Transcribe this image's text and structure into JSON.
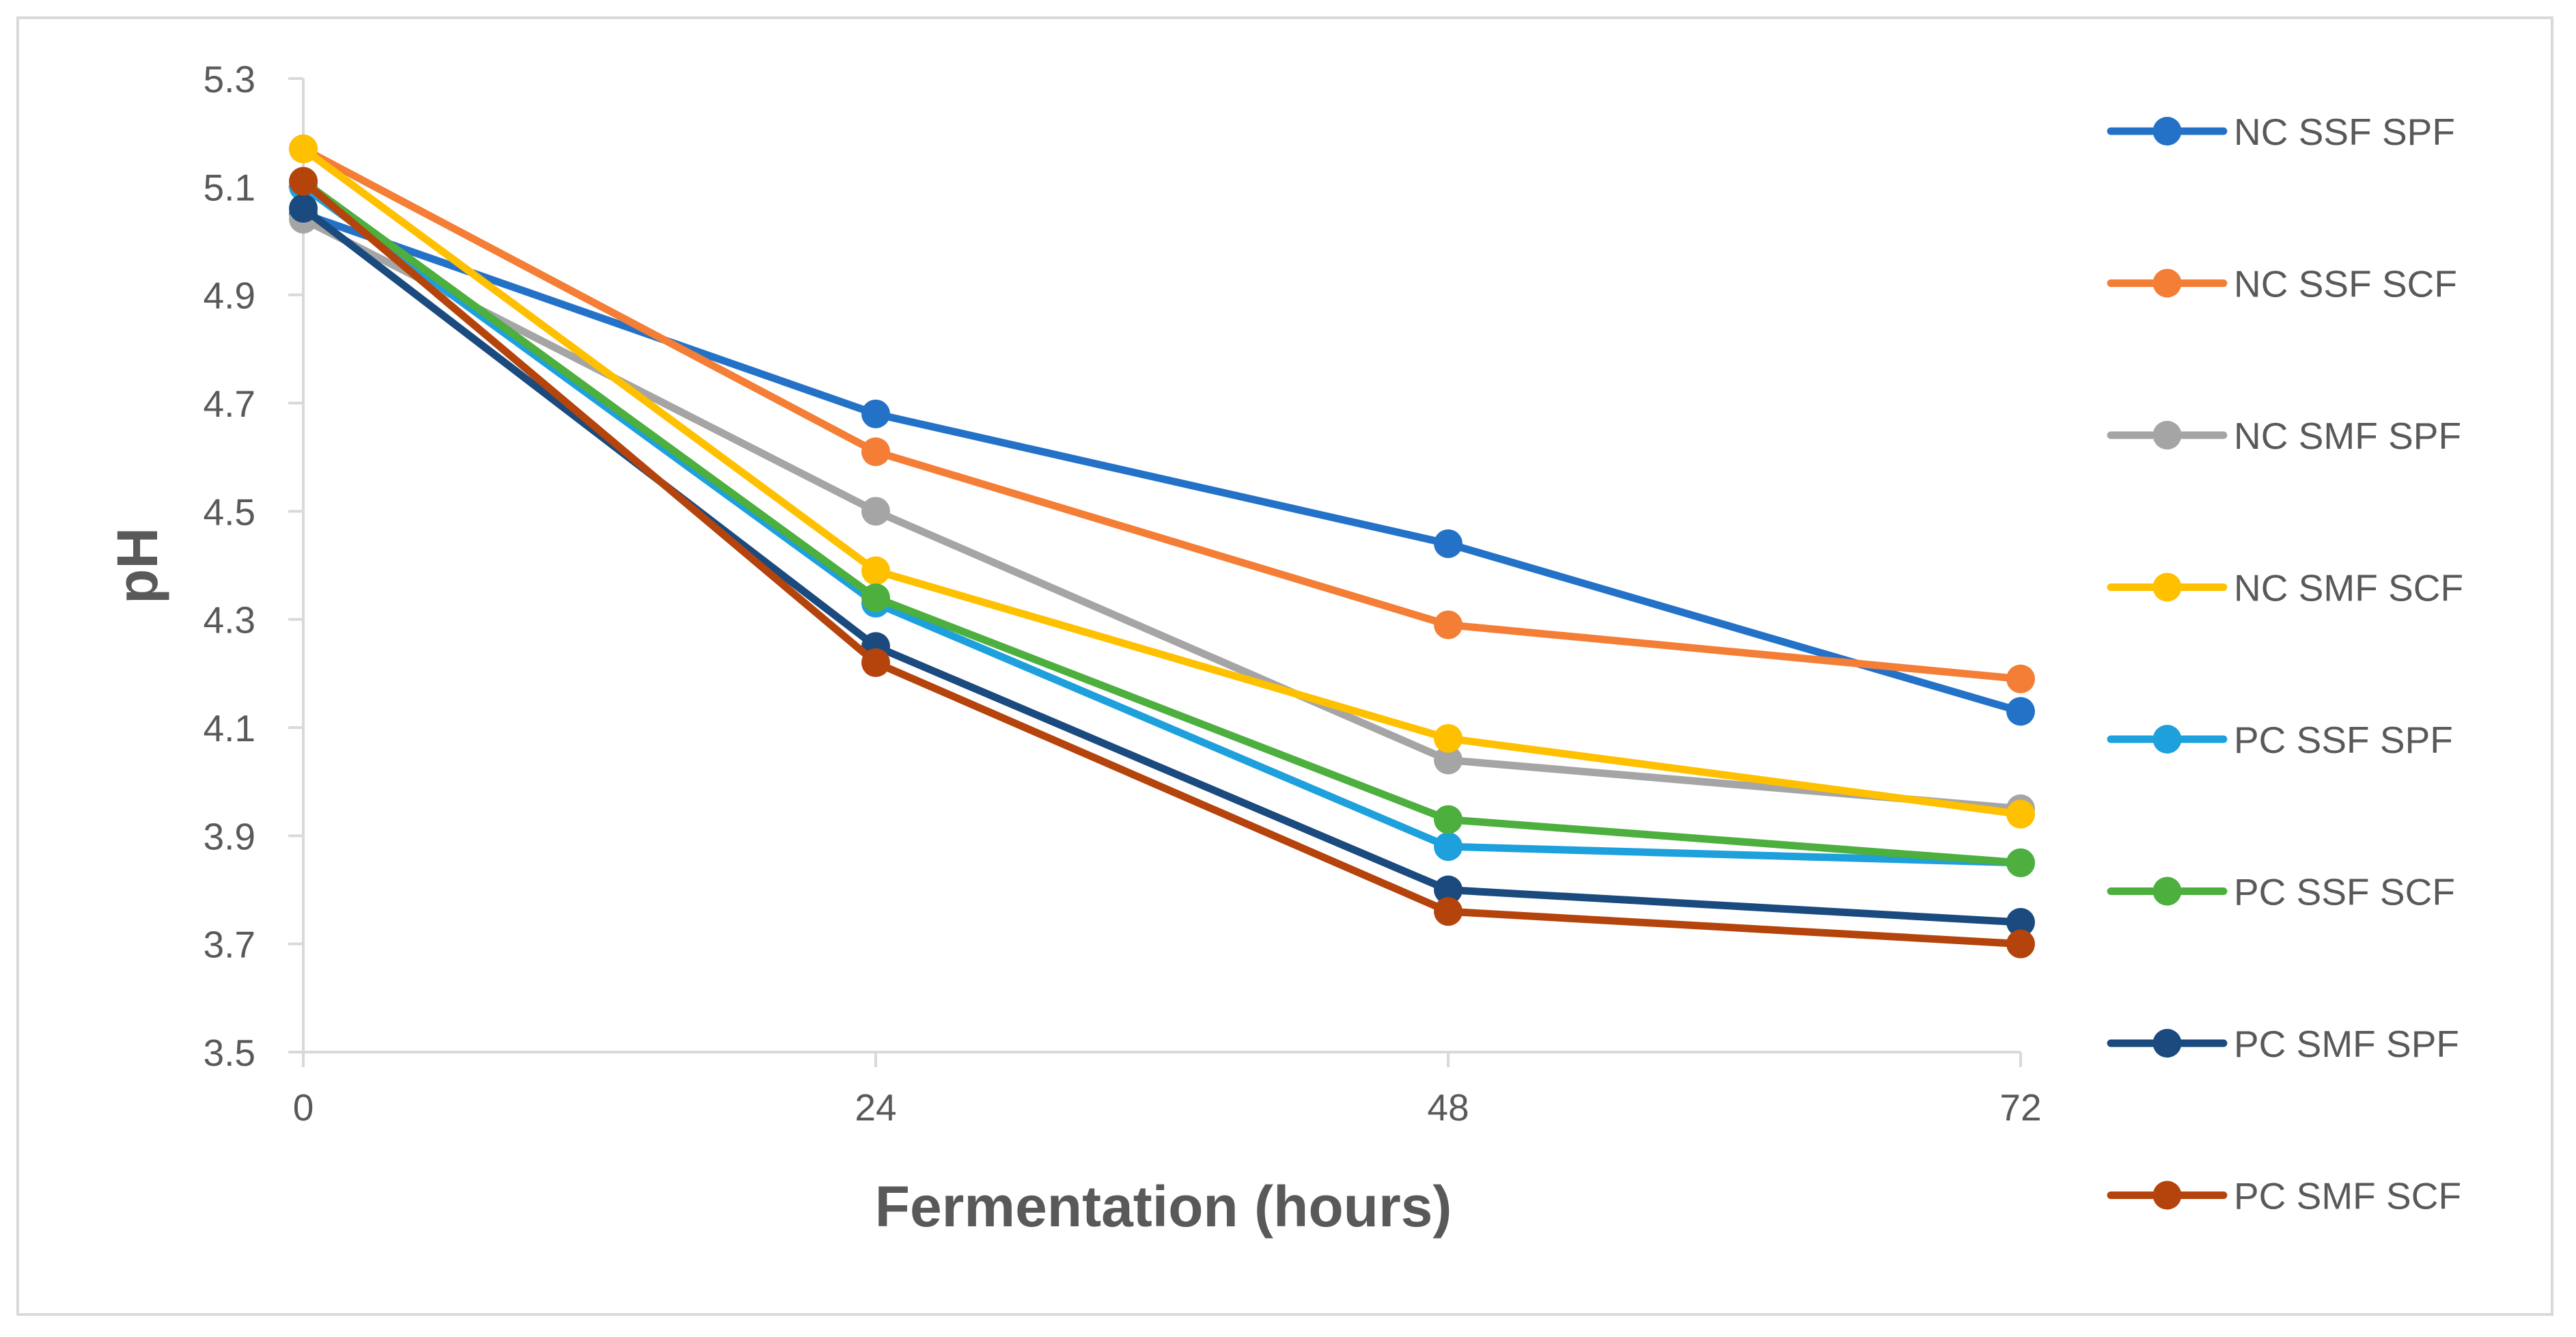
{
  "chart_data": {
    "type": "line",
    "title": "",
    "xlabel": "Fermentation (hours)",
    "ylabel": "pH",
    "x": [
      0,
      24,
      48,
      72
    ],
    "x_tick_labels": [
      "0",
      "24",
      "48",
      "72"
    ],
    "ylim": [
      3.5,
      5.3
    ],
    "y_ticks": [
      3.5,
      3.7,
      3.9,
      4.1,
      4.3,
      4.5,
      4.7,
      4.9,
      5.1,
      5.3
    ],
    "y_tick_labels": [
      "3.5",
      "3.7",
      "3.9",
      "4.1",
      "4.3",
      "4.5",
      "4.7",
      "4.9",
      "5.1",
      "5.3"
    ],
    "grid": false,
    "legend_position": "right",
    "series": [
      {
        "name": "NC SSF SPF",
        "color": "#2472c8",
        "values": [
          5.05,
          4.68,
          4.44,
          4.13
        ]
      },
      {
        "name": "NC SSF SCF",
        "color": "#f47e36",
        "values": [
          5.17,
          4.61,
          4.29,
          4.19
        ]
      },
      {
        "name": "NC SMF SPF",
        "color": "#a5a5a5",
        "values": [
          5.04,
          4.5,
          4.04,
          3.95
        ]
      },
      {
        "name": "NC SMF SCF",
        "color": "#ffc000",
        "values": [
          5.17,
          4.39,
          4.08,
          3.94
        ]
      },
      {
        "name": "PC SSF SPF",
        "color": "#1ea0dc",
        "values": [
          5.1,
          4.33,
          3.88,
          3.85
        ]
      },
      {
        "name": "PC SSF SCF",
        "color": "#4caf3e",
        "values": [
          5.11,
          4.34,
          3.93,
          3.85
        ]
      },
      {
        "name": "PC SMF SPF",
        "color": "#1a4a7e",
        "values": [
          5.06,
          4.25,
          3.8,
          3.74
        ]
      },
      {
        "name": "PC SMF SCF",
        "color": "#b5440c",
        "values": [
          5.11,
          4.22,
          3.76,
          3.7
        ]
      }
    ]
  }
}
